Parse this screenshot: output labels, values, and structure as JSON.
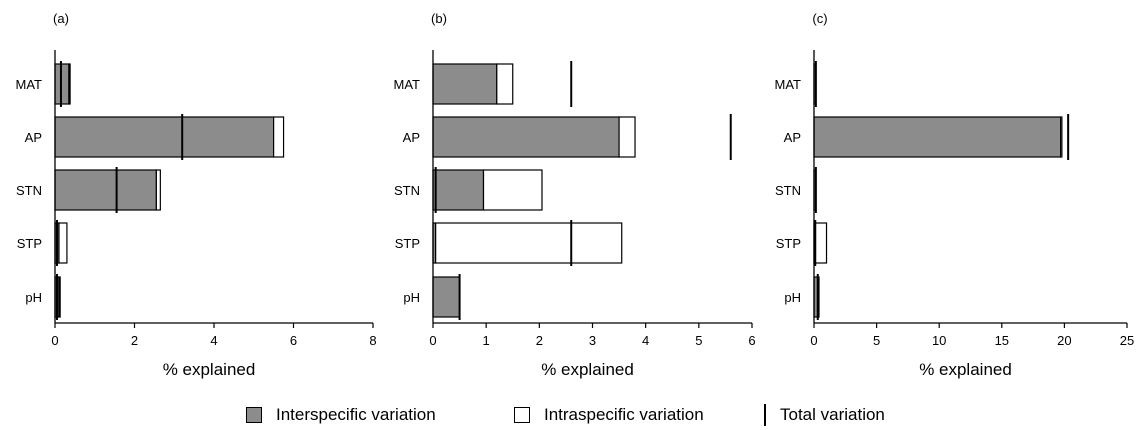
{
  "chart_data": [
    {
      "type": "bar",
      "panel_label": "(a)",
      "categories": [
        "MAT",
        "AP",
        "STN",
        "STP",
        "pH"
      ],
      "series": [
        {
          "name": "Interspecific variation",
          "values": [
            0.35,
            5.5,
            2.55,
            0.1,
            0.1
          ]
        },
        {
          "name": "Intraspecific variation",
          "values": [
            0.03,
            0.25,
            0.1,
            0.2,
            0.03
          ]
        },
        {
          "name": "Total variation",
          "values": [
            0.15,
            3.2,
            1.55,
            0.05,
            0.05
          ]
        }
      ],
      "xlabel": "% explained",
      "xlim": [
        0,
        8
      ],
      "xticks": [
        "0",
        "2",
        "4",
        "6",
        "8"
      ],
      "tick_values": [
        0,
        2,
        4,
        6,
        8
      ]
    },
    {
      "type": "bar",
      "panel_label": "(b)",
      "categories": [
        "MAT",
        "AP",
        "STN",
        "STP",
        "pH"
      ],
      "series": [
        {
          "name": "Interspecific variation",
          "values": [
            1.2,
            3.5,
            0.95,
            0.05,
            0.5
          ]
        },
        {
          "name": "Intraspecific variation",
          "values": [
            0.3,
            0.3,
            1.1,
            3.5,
            0.0
          ]
        },
        {
          "name": "Total variation",
          "values": [
            2.6,
            5.6,
            0.05,
            2.6,
            0.5
          ]
        }
      ],
      "xlabel": "% explained",
      "xlim": [
        0,
        6
      ],
      "xticks": [
        "0",
        "1",
        "2",
        "3",
        "4",
        "5",
        "6"
      ],
      "tick_values": [
        0,
        1,
        2,
        3,
        4,
        5,
        6
      ]
    },
    {
      "type": "bar",
      "panel_label": "(c)",
      "categories": [
        "MAT",
        "AP",
        "STN",
        "STP",
        "pH"
      ],
      "series": [
        {
          "name": "Interspecific variation",
          "values": [
            0.15,
            19.7,
            0.15,
            0.1,
            0.3
          ]
        },
        {
          "name": "Intraspecific variation",
          "values": [
            0.0,
            0.1,
            0.0,
            0.9,
            0.1
          ]
        },
        {
          "name": "Total variation",
          "values": [
            0.15,
            20.3,
            0.15,
            0.1,
            0.3
          ]
        }
      ],
      "xlabel": "% explained",
      "xlim": [
        0,
        25
      ],
      "xticks": [
        "0",
        "5",
        "10",
        "15",
        "20",
        "25"
      ],
      "tick_values": [
        0,
        5,
        10,
        15,
        20,
        25
      ]
    }
  ],
  "legend": {
    "interspecific_label": "Interspecific variation",
    "intraspecific_label": "Intraspecific variation",
    "total_label": "Total variation"
  },
  "colors": {
    "interspecific": "#8c8c8c",
    "intraspecific": "#ffffff",
    "outline": "#000000"
  }
}
